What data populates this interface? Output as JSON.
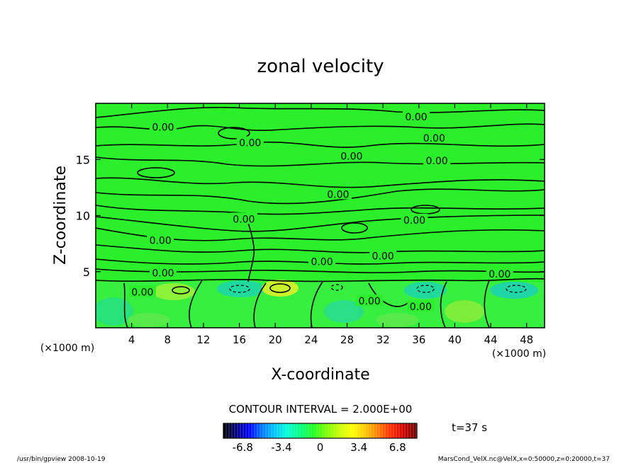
{
  "chart_data": {
    "type": "heatmap",
    "title": "zonal velocity",
    "xlabel": "X-coordinate",
    "ylabel": "Z-coordinate",
    "x_unit_left": "(×1000 m)",
    "x_unit_right": "(×1000 m)",
    "xlim": [
      0,
      50
    ],
    "ylim": [
      0,
      20
    ],
    "x_ticks": [
      "4",
      "8",
      "12",
      "16",
      "20",
      "24",
      "28",
      "32",
      "36",
      "40",
      "44",
      "48"
    ],
    "y_ticks": [
      "5",
      "10",
      "15"
    ],
    "contour_interval_text": "CONTOUR INTERVAL = 2.000E+00",
    "contour_level_label": "0.00",
    "contour_labels": [
      {
        "x": 7.5,
        "y": 17.9
      },
      {
        "x": 17.2,
        "y": 16.5
      },
      {
        "x": 35.7,
        "y": 18.8
      },
      {
        "x": 37.7,
        "y": 16.9
      },
      {
        "x": 28.5,
        "y": 15.3
      },
      {
        "x": 38.0,
        "y": 14.9
      },
      {
        "x": 27.0,
        "y": 11.9
      },
      {
        "x": 16.5,
        "y": 9.7
      },
      {
        "x": 35.5,
        "y": 9.6
      },
      {
        "x": 7.2,
        "y": 7.8
      },
      {
        "x": 32.0,
        "y": 6.4
      },
      {
        "x": 25.2,
        "y": 5.9
      },
      {
        "x": 7.5,
        "y": 4.9
      },
      {
        "x": 45.0,
        "y": 4.8
      },
      {
        "x": 5.2,
        "y": 3.2
      },
      {
        "x": 30.5,
        "y": 2.4
      },
      {
        "x": 36.2,
        "y": 1.9
      }
    ],
    "colorbar": {
      "range": [
        -8.5,
        8.5
      ],
      "ticks": [
        "-6.8",
        "-3.4",
        "0",
        "3.4",
        "6.8"
      ],
      "colors": [
        "#000000",
        "#00007a",
        "#0000ff",
        "#0079ff",
        "#00c8ff",
        "#00ffcf",
        "#00ff7a",
        "#20ff20",
        "#7aff00",
        "#c8ff00",
        "#ffff00",
        "#ffc800",
        "#ff7a00",
        "#ff2a00",
        "#cc0000",
        "#660000"
      ]
    },
    "time_label": "t=37 s",
    "footer_left": "/usr/bin/gpview   2008-10-19",
    "footer_right": "MarsCond_VelX.nc@VelX,x=0:50000,z=0:20000,t=37"
  }
}
